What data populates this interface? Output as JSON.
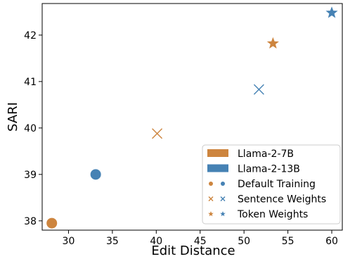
{
  "chart_data": {
    "type": "scatter",
    "xlabel": "Edit Distance",
    "ylabel": "SARI",
    "xlim": [
      27.0,
      61.2
    ],
    "ylim": [
      37.8,
      42.68
    ],
    "xticks": [
      30,
      35,
      40,
      45,
      50,
      55,
      60
    ],
    "yticks": [
      38,
      39,
      40,
      41,
      42
    ],
    "grid": false,
    "legend_position": "lower-right",
    "colors": {
      "Llama-2-7B": "#cd853f",
      "Llama-2-13B": "#4682b4"
    },
    "points": [
      {
        "model": "Llama-2-7B",
        "method": "Default Training",
        "x": 28.1,
        "y": 37.95
      },
      {
        "model": "Llama-2-13B",
        "method": "Default Training",
        "x": 33.1,
        "y": 39.0
      },
      {
        "model": "Llama-2-7B",
        "method": "Sentence Weights",
        "x": 40.1,
        "y": 39.88
      },
      {
        "model": "Llama-2-13B",
        "method": "Sentence Weights",
        "x": 51.7,
        "y": 40.83
      },
      {
        "model": "Llama-2-7B",
        "method": "Token Weights",
        "x": 53.3,
        "y": 41.82
      },
      {
        "model": "Llama-2-13B",
        "method": "Token Weights",
        "x": 60.0,
        "y": 42.48
      }
    ],
    "legend": {
      "models": [
        "Llama-2-7B",
        "Llama-2-13B"
      ],
      "methods": [
        {
          "label": "Default Training",
          "marker": "circle"
        },
        {
          "label": "Sentence Weights",
          "marker": "x"
        },
        {
          "label": "Token Weights",
          "marker": "star"
        }
      ]
    }
  }
}
